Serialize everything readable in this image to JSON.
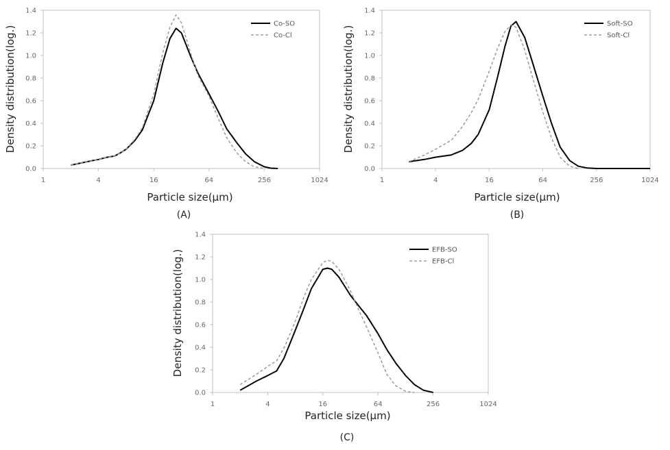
{
  "chart_data": [
    {
      "type": "line",
      "panel_label": "(A)",
      "xlabel": "Particle size(μm)",
      "ylabel": "Density distribution(log.)",
      "x_scale": "log2",
      "xlim": [
        1,
        1024
      ],
      "ylim": [
        0,
        1.4
      ],
      "x_tick_labels": [
        "1",
        "4",
        "16",
        "64",
        "256",
        "1024"
      ],
      "y_tick_labels": [
        "0.0",
        "0.2",
        "0.4",
        "0.6",
        "0.8",
        "1.0",
        "1.2",
        "1.4"
      ],
      "legend_position": "top-right",
      "series": [
        {
          "name": "Co-SO",
          "style": "solid",
          "color": "#000000",
          "x": [
            2,
            3,
            4,
            5,
            6,
            7,
            8,
            10,
            12,
            16,
            20,
            24,
            28,
            32,
            40,
            48,
            64,
            80,
            100,
            128,
            160,
            200,
            256,
            300,
            360
          ],
          "y": [
            0.03,
            0.06,
            0.08,
            0.1,
            0.11,
            0.14,
            0.17,
            0.25,
            0.34,
            0.6,
            0.93,
            1.15,
            1.24,
            1.2,
            1.0,
            0.85,
            0.66,
            0.51,
            0.35,
            0.23,
            0.13,
            0.06,
            0.015,
            0.003,
            0.0
          ]
        },
        {
          "name": "Co-Cl",
          "style": "dashed",
          "color": "#999999",
          "x": [
            2,
            3,
            4,
            5,
            6,
            7,
            8,
            10,
            12,
            16,
            20,
            24,
            28,
            32,
            40,
            48,
            64,
            80,
            100,
            128,
            160,
            200,
            256
          ],
          "y": [
            0.03,
            0.06,
            0.08,
            0.1,
            0.11,
            0.14,
            0.17,
            0.26,
            0.36,
            0.66,
            1.02,
            1.25,
            1.36,
            1.29,
            1.03,
            0.83,
            0.64,
            0.45,
            0.27,
            0.14,
            0.06,
            0.015,
            0.0
          ]
        }
      ]
    },
    {
      "type": "line",
      "panel_label": "(B)",
      "xlabel": "Particle size(μm)",
      "ylabel": "Density distribution(log.)",
      "x_scale": "log2",
      "xlim": [
        1,
        1024
      ],
      "ylim": [
        0,
        1.4
      ],
      "x_tick_labels": [
        "1",
        "4",
        "16",
        "64",
        "256",
        "1024"
      ],
      "y_tick_labels": [
        "0.0",
        "0.2",
        "0.4",
        "0.6",
        "0.8",
        "1.0",
        "1.2",
        "1.4"
      ],
      "legend_position": "top-right",
      "series": [
        {
          "name": "Soft-SO",
          "style": "solid",
          "color": "#000000",
          "x": [
            2,
            3,
            4,
            6,
            8,
            10,
            12,
            16,
            20,
            24,
            28,
            32,
            40,
            48,
            64,
            80,
            100,
            128,
            160,
            200,
            256,
            1024
          ],
          "y": [
            0.06,
            0.08,
            0.1,
            0.12,
            0.16,
            0.22,
            0.3,
            0.52,
            0.82,
            1.08,
            1.26,
            1.3,
            1.16,
            0.96,
            0.64,
            0.4,
            0.19,
            0.07,
            0.02,
            0.005,
            0.0,
            0.0
          ]
        },
        {
          "name": "Soft-Cl",
          "style": "dashed",
          "color": "#999999",
          "x": [
            2,
            3,
            4,
            6,
            8,
            10,
            12,
            16,
            20,
            24,
            28,
            32,
            40,
            48,
            64,
            80,
            100,
            128,
            160
          ],
          "y": [
            0.06,
            0.12,
            0.17,
            0.25,
            0.37,
            0.49,
            0.61,
            0.86,
            1.07,
            1.21,
            1.27,
            1.25,
            1.05,
            0.83,
            0.5,
            0.27,
            0.1,
            0.02,
            0.0
          ]
        }
      ]
    },
    {
      "type": "line",
      "panel_label": "(C)",
      "xlabel": "Particle size(μm)",
      "ylabel": "Density distribution(log.)",
      "x_scale": "log2",
      "xlim": [
        1,
        1024
      ],
      "ylim": [
        0,
        1.4
      ],
      "x_tick_labels": [
        "1",
        "4",
        "16",
        "64",
        "256",
        "1024"
      ],
      "y_tick_labels": [
        "0.0",
        "0.2",
        "0.4",
        "0.6",
        "0.8",
        "1.0",
        "1.2",
        "1.4"
      ],
      "legend_position": "top-right",
      "series": [
        {
          "name": "EFB-SO",
          "style": "solid",
          "color": "#000000",
          "x": [
            2,
            3,
            4,
            5,
            6,
            8,
            10,
            12,
            16,
            18,
            20,
            24,
            32,
            40,
            48,
            64,
            80,
            100,
            128,
            160,
            200,
            256
          ],
          "y": [
            0.02,
            0.1,
            0.15,
            0.19,
            0.3,
            0.55,
            0.75,
            0.92,
            1.09,
            1.1,
            1.09,
            1.02,
            0.86,
            0.76,
            0.68,
            0.52,
            0.38,
            0.26,
            0.15,
            0.07,
            0.02,
            0.0
          ]
        },
        {
          "name": "EFB-Cl",
          "style": "dashed",
          "color": "#999999",
          "x": [
            2,
            3,
            4,
            5,
            6,
            8,
            10,
            12,
            16,
            18,
            20,
            24,
            32,
            40,
            48,
            64,
            80,
            100,
            128,
            160
          ],
          "y": [
            0.07,
            0.16,
            0.23,
            0.28,
            0.39,
            0.63,
            0.85,
            1.0,
            1.15,
            1.17,
            1.16,
            1.09,
            0.9,
            0.72,
            0.58,
            0.35,
            0.16,
            0.06,
            0.01,
            0.0
          ]
        }
      ]
    }
  ]
}
